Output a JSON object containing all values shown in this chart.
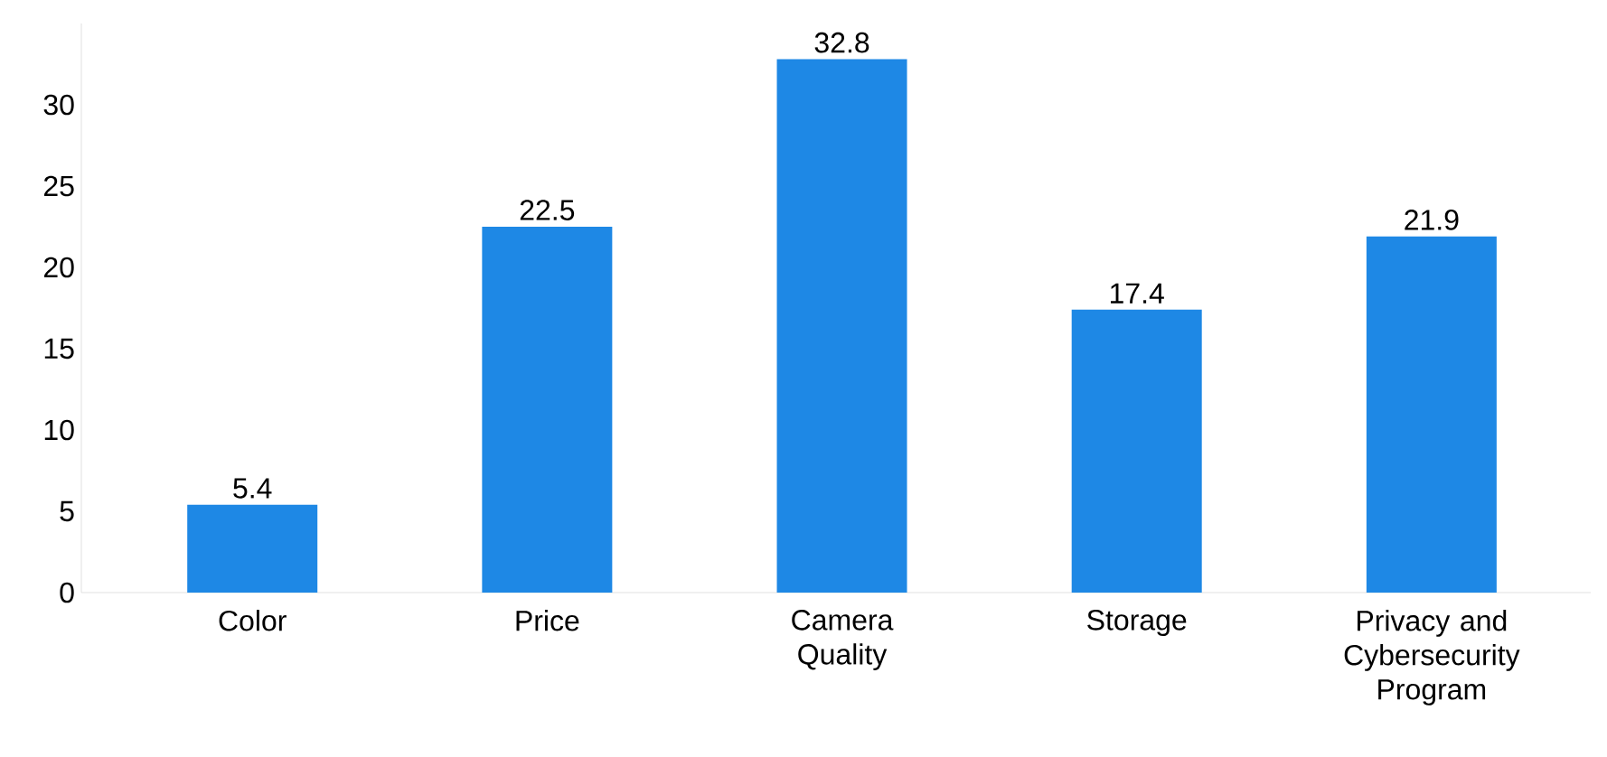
{
  "chart_data": {
    "type": "bar",
    "categories": [
      "Color",
      "Price",
      "Camera Quality",
      "Storage",
      "Privacy and Cybersecurity Program"
    ],
    "values": [
      5.4,
      22.5,
      32.8,
      17.4,
      21.9
    ],
    "color": "#1e88e5",
    "ylim": [
      0,
      35
    ],
    "yticks": [
      0,
      5,
      10,
      15,
      20,
      25,
      30
    ],
    "data_labels": true,
    "grid": false
  }
}
